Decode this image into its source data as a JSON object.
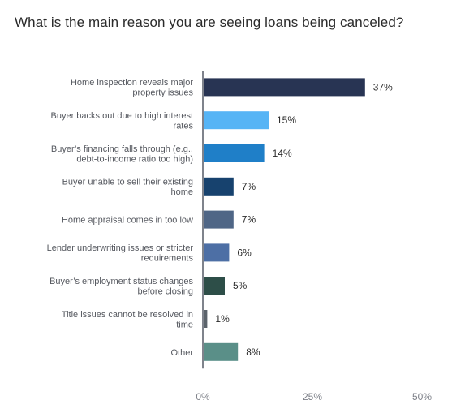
{
  "chart_data": {
    "type": "bar",
    "orientation": "horizontal",
    "title": "What is the main reason you are seeing loans being canceled?",
    "xlabel": "",
    "ylabel": "",
    "categories": [
      [
        "Home inspection reveals major",
        "property issues"
      ],
      [
        "Buyer backs out due to high interest",
        "rates"
      ],
      [
        "Buyer’s financing falls through (e.g.,",
        "debt-to-income ratio too high)"
      ],
      [
        "Buyer unable to sell their existing",
        "home"
      ],
      [
        "Home appraisal comes in too low"
      ],
      [
        "Lender underwriting issues or stricter",
        "requirements"
      ],
      [
        "Buyer’s employment status changes",
        "before closing"
      ],
      [
        "Title issues cannot be resolved in",
        "time"
      ],
      [
        "Other"
      ]
    ],
    "values": [
      37,
      15,
      14,
      7,
      7,
      6,
      5,
      1,
      8
    ],
    "value_labels": [
      "37%",
      "15%",
      "14%",
      "7%",
      "7%",
      "6%",
      "5%",
      "1%",
      "8%"
    ],
    "colors": [
      "#283453",
      "#56b4f5",
      "#1f7fc8",
      "#17426e",
      "#4f6686",
      "#4d6fa5",
      "#2d4e48",
      "#5b636b",
      "#5a8f88"
    ],
    "xlim": [
      0,
      50
    ],
    "xticks": [
      0,
      25,
      50
    ],
    "xtick_labels": [
      "0%",
      "25%",
      "50%"
    ],
    "grid": false,
    "legend": "none"
  }
}
